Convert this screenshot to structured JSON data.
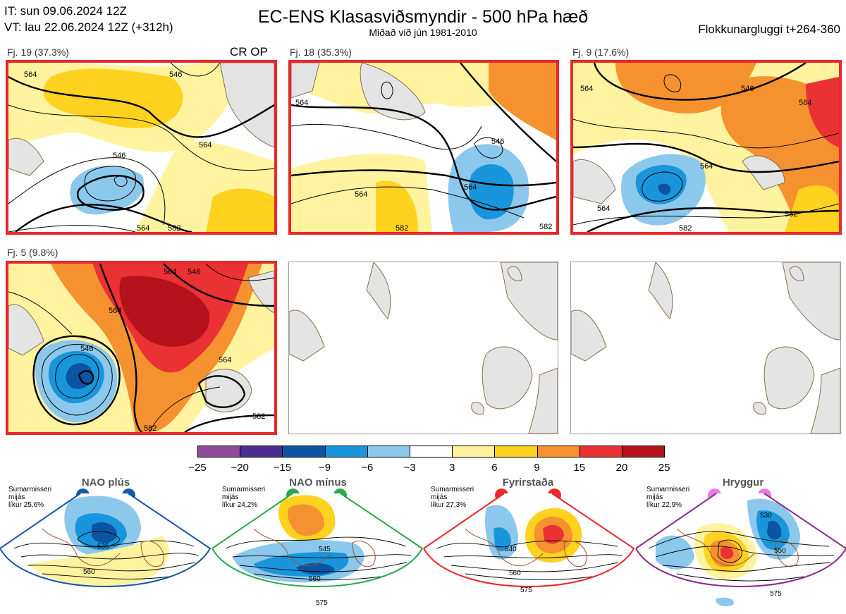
{
  "header": {
    "it_line": "IT: sun 09.06.2024 12Z",
    "vt_line": "VT: lau 22.06.2024 12Z  (+312h)",
    "title": "EC-ENS Klasasviðsmyndir - 500 hPa hæð",
    "subtitle": "Miðað við jún 1981-2010",
    "window": "Flokkunargluggi t+264-360"
  },
  "panels": [
    {
      "label": "Fj. 19 (37.3%)",
      "tag": "CR OP",
      "contours": [
        "564",
        "546",
        "546",
        "564",
        "564",
        "582"
      ]
    },
    {
      "label": "Fj. 18 (35.3%)",
      "tag": "",
      "contours": [
        "564",
        "546",
        "564",
        "564",
        "582",
        "582"
      ]
    },
    {
      "label": "Fj. 9 (17.6%)",
      "tag": "",
      "contours": [
        "564",
        "546",
        "564",
        "564",
        "564",
        "582",
        "582"
      ]
    },
    {
      "label": "Fj. 5 (9.8%)",
      "tag": "",
      "contours": [
        "564",
        "546",
        "564",
        "546",
        "564",
        "582",
        "582"
      ]
    }
  ],
  "colorbar": {
    "ticks": [
      "−25",
      "−20",
      "−15",
      "−9",
      "−6",
      "−3",
      "3",
      "6",
      "9",
      "15",
      "20",
      "25"
    ],
    "colors": [
      "#8e4d9c",
      "#4a2d8e",
      "#0b53a3",
      "#1996db",
      "#8cc8ec",
      "#ffffff",
      "#fff3a0",
      "#ffd21f",
      "#f5922f",
      "#ea3133",
      "#b5121b"
    ]
  },
  "regimes": [
    {
      "name": "NAO plús",
      "note": [
        "Sumarmisseri",
        "mijás",
        "líkur 25,6%"
      ],
      "border": "#1558a8",
      "dot": "#1558a8",
      "contours": [
        "535",
        "560"
      ]
    },
    {
      "name": "NAO mínus",
      "note": [
        "Sumarmisseri",
        "mijás",
        "líkur 24,2%"
      ],
      "border": "#2aa84a",
      "dot": "#2aa84a",
      "contours": [
        "545",
        "560",
        "575"
      ]
    },
    {
      "name": "Fyrirstaða",
      "note": [
        "Sumarmisseri",
        "mijás",
        "líkur 27,3%"
      ],
      "border": "#e8282a",
      "dot": "#e8282a",
      "contours": [
        "540",
        "560",
        "575"
      ]
    },
    {
      "name": "Hryggur",
      "note": [
        "Sumarmisseri",
        "mijás",
        "líkur 22,9%"
      ],
      "border": "#8b2a8b",
      "dot": "#e87ae8",
      "contours": [
        "530",
        "550",
        "575"
      ]
    }
  ]
}
